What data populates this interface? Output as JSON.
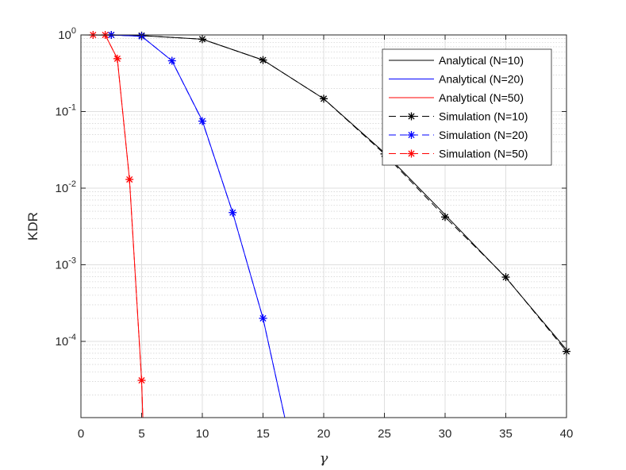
{
  "chart_data": {
    "type": "line",
    "xlabel": "γ",
    "ylabel": "KDR",
    "xlim": [
      0,
      40
    ],
    "ylim_log10": [
      -5,
      0
    ],
    "yscale": "log",
    "xticks": [
      0,
      5,
      10,
      15,
      20,
      25,
      30,
      35,
      40
    ],
    "yticks": [
      {
        "value": 1,
        "base": "10",
        "exp": "0"
      },
      {
        "value": 0.1,
        "base": "10",
        "exp": "-1"
      },
      {
        "value": 0.01,
        "base": "10",
        "exp": "-2"
      },
      {
        "value": 0.001,
        "base": "10",
        "exp": "-3"
      },
      {
        "value": 0.0001,
        "base": "10",
        "exp": "-4"
      }
    ],
    "grid": true,
    "legend_position": "top-right",
    "series": [
      {
        "name": "Analytical (N=10)",
        "color": "#000000",
        "dash": "solid",
        "marker": "none",
        "x": [
          0,
          5,
          10,
          15,
          20,
          25,
          30,
          35,
          40
        ],
        "y": [
          1.0,
          0.98,
          0.88,
          0.47,
          0.147,
          0.029,
          0.0045,
          0.00068,
          7.8e-05
        ]
      },
      {
        "name": "Analytical (N=20)",
        "color": "#0000ff",
        "dash": "solid",
        "marker": "none",
        "x": [
          2.5,
          5,
          7.5,
          10,
          12.5,
          15,
          16.8
        ],
        "y": [
          1.0,
          0.96,
          0.46,
          0.076,
          0.0048,
          0.0002,
          1e-05
        ]
      },
      {
        "name": "Analytical (N=50)",
        "color": "#ff0000",
        "dash": "solid",
        "marker": "none",
        "x": [
          1,
          2,
          3,
          4,
          5,
          5.1
        ],
        "y": [
          1.0,
          1.0,
          0.49,
          0.013,
          3.1e-05,
          1e-05
        ]
      },
      {
        "name": "Simulation (N=10)",
        "color": "#000000",
        "dash": "dashed",
        "marker": "asterisk",
        "x": [
          2.5,
          5,
          10,
          15,
          20,
          25,
          30,
          35,
          40
        ],
        "y": [
          1.0,
          0.98,
          0.88,
          0.47,
          0.147,
          0.028,
          0.0042,
          0.00069,
          7.4e-05
        ]
      },
      {
        "name": "Simulation (N=20)",
        "color": "#0000ff",
        "dash": "dashed",
        "marker": "asterisk",
        "x": [
          2.5,
          5,
          7.5,
          10,
          12.5,
          15,
          16.8
        ],
        "y": [
          1.0,
          0.96,
          0.46,
          0.075,
          0.0048,
          0.0002,
          1e-05
        ]
      },
      {
        "name": "Simulation (N=50)",
        "color": "#ff0000",
        "dash": "dashed",
        "marker": "asterisk",
        "x": [
          1,
          2,
          3,
          4,
          5,
          5.1
        ],
        "y": [
          1.0,
          1.0,
          0.49,
          0.013,
          3.1e-05,
          1e-05
        ]
      }
    ]
  }
}
